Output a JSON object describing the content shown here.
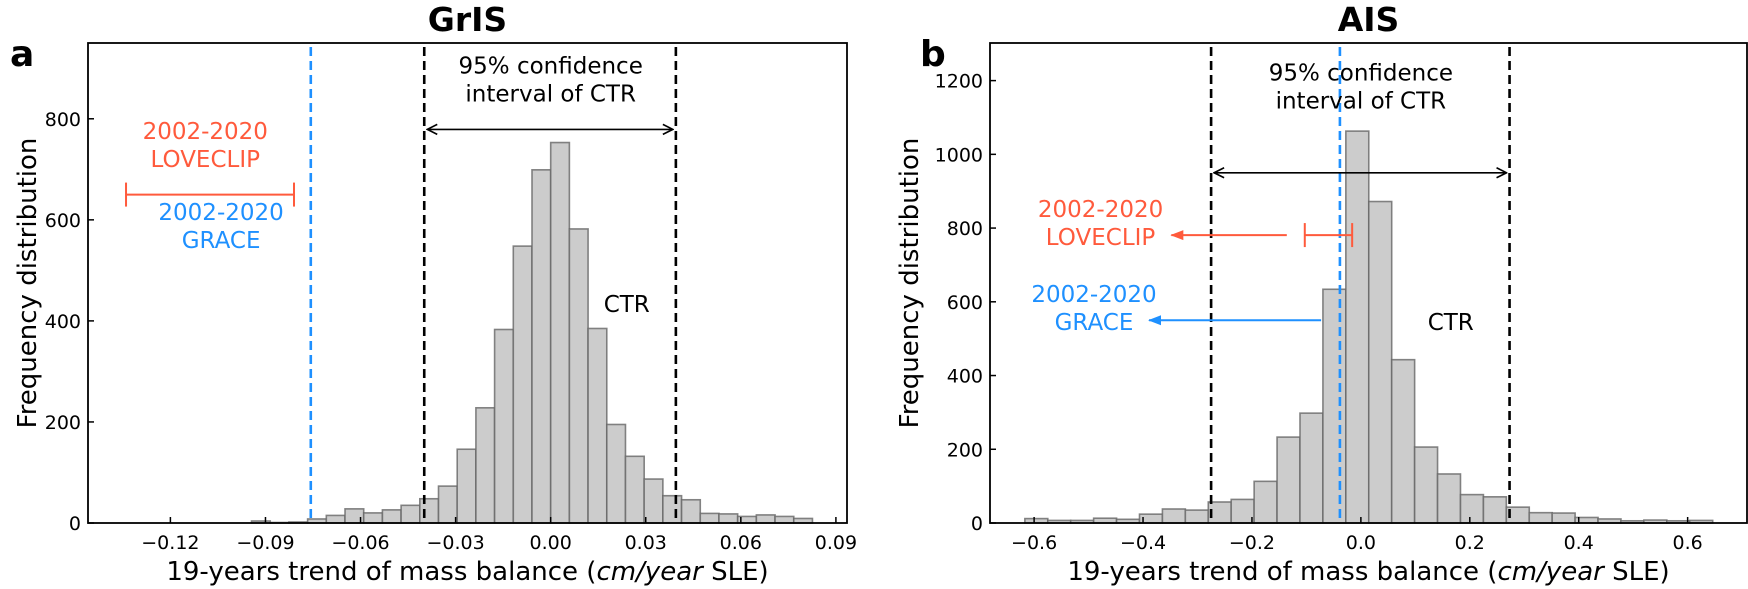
{
  "chart_data": [
    {
      "type": "bar",
      "panel_label": "a",
      "title": "GrIS",
      "xlabel_parts": [
        "19-years trend of mass balance (",
        "cm/year",
        " SLE)"
      ],
      "ylabel": "Frequency distribution",
      "xlim": [
        -0.146,
        0.0935
      ],
      "ylim": [
        0,
        950
      ],
      "xticks": [
        -0.12,
        -0.09,
        -0.06,
        -0.03,
        0.0,
        0.03,
        0.06,
        0.09
      ],
      "xtick_labels": [
        "−0.12",
        "−0.09",
        "−0.06",
        "−0.03",
        "0.00",
        "0.03",
        "0.06",
        "0.09"
      ],
      "yticks": [
        0,
        200,
        400,
        600,
        800
      ],
      "ytick_labels": [
        "0",
        "200",
        "400",
        "600",
        "800"
      ],
      "grid": false,
      "histogram": {
        "bin_start": -0.0944,
        "bin_width": 0.0059,
        "values": [
          4,
          1,
          2,
          8,
          15,
          28,
          20,
          26,
          35,
          48,
          73,
          146,
          228,
          383,
          548,
          699,
          753,
          582,
          385,
          195,
          132,
          87,
          54,
          46,
          19,
          18,
          13,
          16,
          13,
          9
        ],
        "fill": "#cccccc",
        "edge": "#666666"
      },
      "ci_lines": [
        -0.0399,
        0.0395
      ],
      "ci_arrow_y": 779,
      "ci_text": [
        "95% confidence",
        "interval of CTR"
      ],
      "ci_text_pos": [
        0.0,
        890
      ],
      "ctr_label": "CTR",
      "ctr_label_pos": [
        0.024,
        418
      ],
      "grace": {
        "line_x": -0.0757,
        "text": [
          "2002-2020",
          "GRACE"
        ],
        "text_pos": [
          -0.104,
          600
        ],
        "color": "#1e90ff"
      },
      "loveclip": {
        "errorbar": [
          -0.134,
          -0.081
        ],
        "errorbar_y": 650,
        "text": [
          "2002-2020",
          "LOVECLIP"
        ],
        "text_pos": [
          -0.109,
          760
        ],
        "color": "#ff5a3c"
      }
    },
    {
      "type": "bar",
      "panel_label": "b",
      "title": "AIS",
      "xlabel_parts": [
        "19-years trend of mass balance (",
        "cm/year",
        " SLE)"
      ],
      "ylabel": "Frequency distribution",
      "xlim": [
        -0.681,
        0.709
      ],
      "ylim": [
        0,
        1302
      ],
      "xticks": [
        -0.6,
        -0.4,
        -0.2,
        0.0,
        0.2,
        0.4,
        0.6
      ],
      "xtick_labels": [
        "−0.6",
        "−0.4",
        "−0.2",
        "0.0",
        "0.2",
        "0.4",
        "0.6"
      ],
      "yticks": [
        0,
        200,
        400,
        600,
        800,
        1000,
        1200
      ],
      "ytick_labels": [
        "0",
        "200",
        "400",
        "600",
        "800",
        "1000",
        "1200"
      ],
      "grid": false,
      "histogram": {
        "bin_start": -0.617,
        "bin_width": 0.0421,
        "values": [
          12,
          7,
          7,
          13,
          10,
          24,
          38,
          35,
          57,
          64,
          113,
          233,
          298,
          634,
          1063,
          872,
          443,
          206,
          133,
          77,
          71,
          43,
          28,
          27,
          15,
          11,
          6,
          8,
          6,
          7
        ],
        "fill": "#cccccc",
        "edge": "#666666"
      },
      "ci_lines": [
        -0.275,
        0.273
      ],
      "ci_arrow_y": 950,
      "ci_text": [
        "95% confidence",
        "interval of CTR"
      ],
      "ci_text_pos": [
        0.0,
        1200
      ],
      "ctr_label": "CTR",
      "ctr_label_pos": [
        0.165,
        524
      ],
      "grace": {
        "line_x": -0.0385,
        "arrow": [
          -0.073,
          -0.389
        ],
        "arrow_y": 550,
        "text": [
          "2002-2020",
          "GRACE"
        ],
        "text_pos": [
          -0.49,
          600
        ],
        "color": "#1e90ff"
      },
      "loveclip": {
        "errorbar": [
          -0.103,
          -0.016
        ],
        "errorbar_y": 781,
        "arrow": [
          -0.136,
          -0.348
        ],
        "text": [
          "2002-2020",
          "LOVECLIP"
        ],
        "text_pos": [
          -0.478,
          830
        ],
        "color": "#ff5a3c"
      }
    }
  ]
}
